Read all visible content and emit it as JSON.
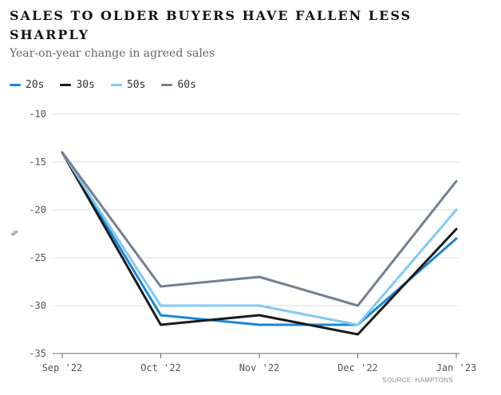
{
  "chart_data": {
    "type": "line",
    "title": "SALES TO OLDER BUYERS HAVE FALLEN LESS SHARPLY",
    "subtitle": "Year-on-year change in agreed sales",
    "ylabel": "%",
    "xlabel": "",
    "categories": [
      "Sep '22",
      "Oct '22",
      "Nov '22",
      "Dec '22",
      "Jan '23"
    ],
    "ylim": [
      -35,
      -10
    ],
    "yticks": [
      -10,
      -15,
      -20,
      -25,
      -30,
      -35
    ],
    "grid": true,
    "legend_position": "top-left",
    "series": [
      {
        "name": "20s",
        "color": "#1a86d6",
        "values": [
          -14,
          -31,
          -32,
          -32,
          -23
        ]
      },
      {
        "name": "30s",
        "color": "#1a1a1a",
        "values": [
          -14,
          -32,
          -31,
          -33,
          -22
        ]
      },
      {
        "name": "50s",
        "color": "#7fcaf5",
        "values": [
          -14,
          -30,
          -30,
          -32,
          -20
        ]
      },
      {
        "name": "60s",
        "color": "#737f90",
        "values": [
          -14,
          -28,
          -27,
          -30,
          -17
        ]
      }
    ],
    "source": "SOURCE: HAMPTONS"
  }
}
